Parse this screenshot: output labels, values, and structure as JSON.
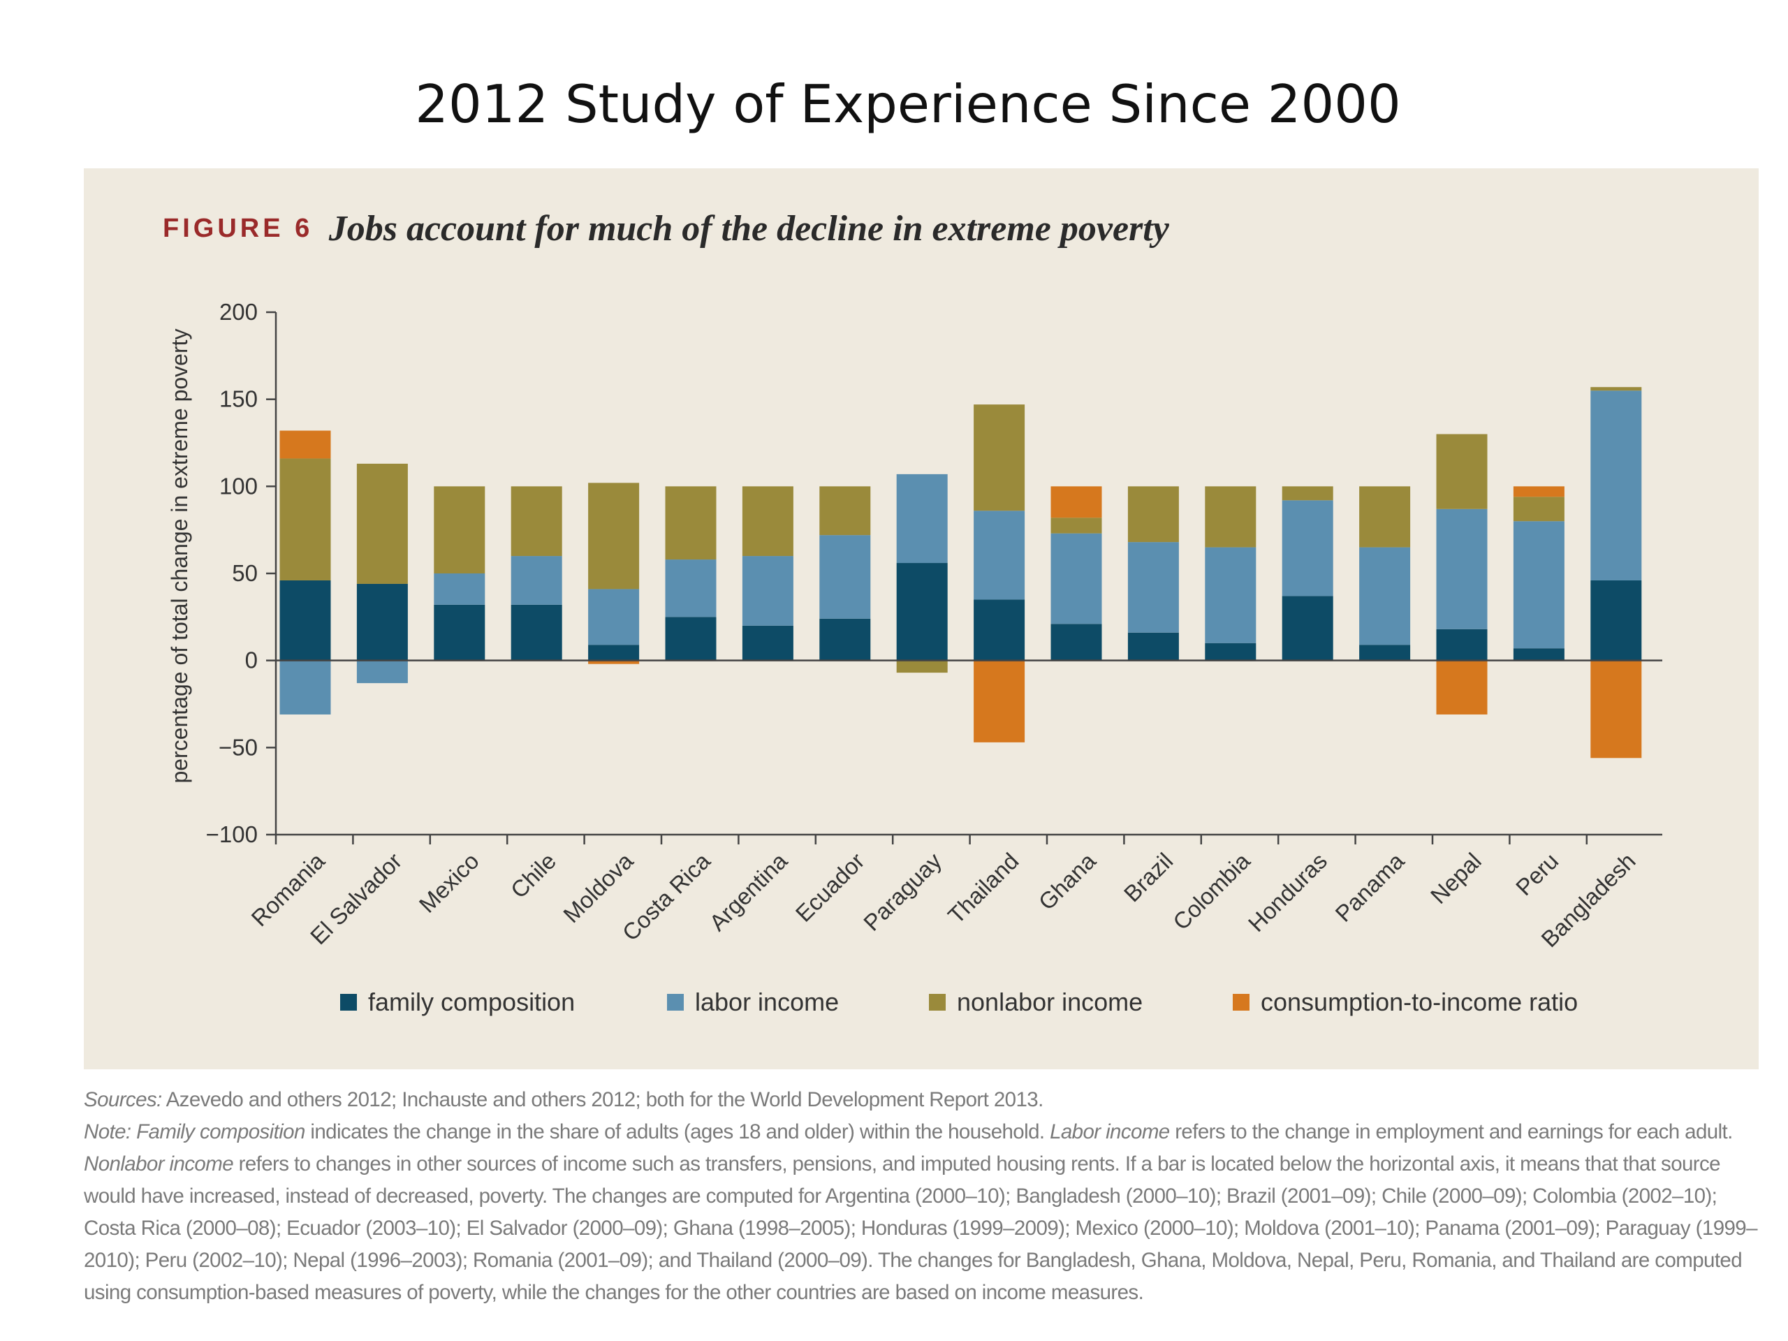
{
  "slide_title": "2012 Study of Experience Since 2000",
  "figure": {
    "label": "FIGURE 6",
    "title": "Jobs account for much of the decline in extreme poverty"
  },
  "colors": {
    "panel_bg": "#efeadf",
    "family composition": "#0d4b66",
    "labor income": "#5b8fb0",
    "nonlabor income": "#9a8a3b",
    "consumption-to-income ratio": "#d6781e"
  },
  "chart_data": {
    "type": "bar",
    "stacked": true,
    "categories": [
      "Romania",
      "El Salvador",
      "Mexico",
      "Chile",
      "Moldova",
      "Costa Rica",
      "Argentina",
      "Ecuador",
      "Paraguay",
      "Thailand",
      "Ghana",
      "Brazil",
      "Colombia",
      "Honduras",
      "Panama",
      "Nepal",
      "Peru",
      "Bangladesh"
    ],
    "series": [
      {
        "name": "family composition",
        "values": [
          46,
          44,
          32,
          32,
          9,
          25,
          20,
          24,
          56,
          35,
          21,
          16,
          10,
          37,
          9,
          18,
          7,
          46
        ]
      },
      {
        "name": "labor income",
        "values": [
          -31,
          -13,
          18,
          28,
          32,
          33,
          40,
          48,
          51,
          51,
          52,
          52,
          55,
          55,
          56,
          69,
          73,
          109
        ]
      },
      {
        "name": "nonlabor income",
        "values": [
          70,
          69,
          50,
          40,
          61,
          42,
          40,
          28,
          -7,
          61,
          9,
          32,
          35,
          8,
          35,
          43,
          14,
          2
        ]
      },
      {
        "name": "consumption-to-income ratio",
        "values": [
          16,
          0,
          0,
          0,
          -2,
          0,
          0,
          0,
          0,
          -47,
          18,
          0,
          0,
          0,
          0,
          -31,
          6,
          -56
        ]
      }
    ],
    "ylabel": "percentage of total change in extreme poverty",
    "yticks": [
      200,
      150,
      100,
      50,
      0,
      -50,
      -100
    ],
    "ytick_labels": [
      "200",
      "150",
      "100",
      "50",
      "0",
      "−50",
      "−100"
    ],
    "ylim": [
      -100,
      200
    ],
    "grid": false,
    "legend": "bottom"
  },
  "notes": {
    "sources_label": "Sources:",
    "sources_text": " Azevedo and others 2012; Inchauste and others 2012; both for the World Development Report 2013.",
    "note_label": "Note:",
    "family_term": "Family composition",
    "text_a": " indicates the change in the share of adults (ages 18 and older) within the household. ",
    "labor_term": "Labor income",
    "text_b": " refers to the change in employment and earnings for each adult. ",
    "nonlabor_term": "Nonlabor income",
    "text_c": " refers to changes in other sources of income such as transfers, pensions, and imputed housing rents. If a bar is located below the horizontal axis, it means that that source would have increased, instead of decreased, poverty. The changes are computed for Argentina (2000–10); Bangladesh (2000–10); Brazil (2001–09);  Chile (2000–09); Colombia (2002–10); Costa Rica (2000–08); Ecuador (2003–10); El Salvador (2000–09); Ghana (1998–2005); Honduras (1999–2009); Mexico (2000–10); Moldova (2001–10); Panama (2001–09); Paraguay (1999–2010); Peru (2002–10); Nepal (1996–2003); Romania (2001–09); and Thailand (2000–09). The changes for Bangladesh, Ghana, Moldova, Nepal, Peru, Romania, and Thailand are computed using consumption-based measures of poverty, while the changes for the other countries are based on income measures."
  }
}
